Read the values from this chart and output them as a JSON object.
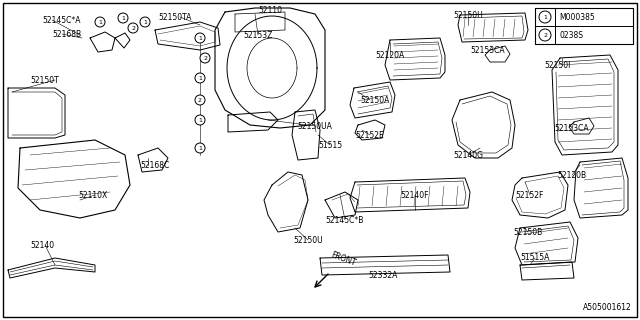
{
  "bg_color": "#ffffff",
  "border_color": "#000000",
  "line_color": "#000000",
  "diagram_credit": "A505001612",
  "legend_entries": [
    {
      "circle": "1",
      "text": "M000385"
    },
    {
      "circle": "2",
      "text": "0238S"
    }
  ],
  "font_size_label": 5.5,
  "font_size_legend": 5.5,
  "font_size_credit": 5.5
}
